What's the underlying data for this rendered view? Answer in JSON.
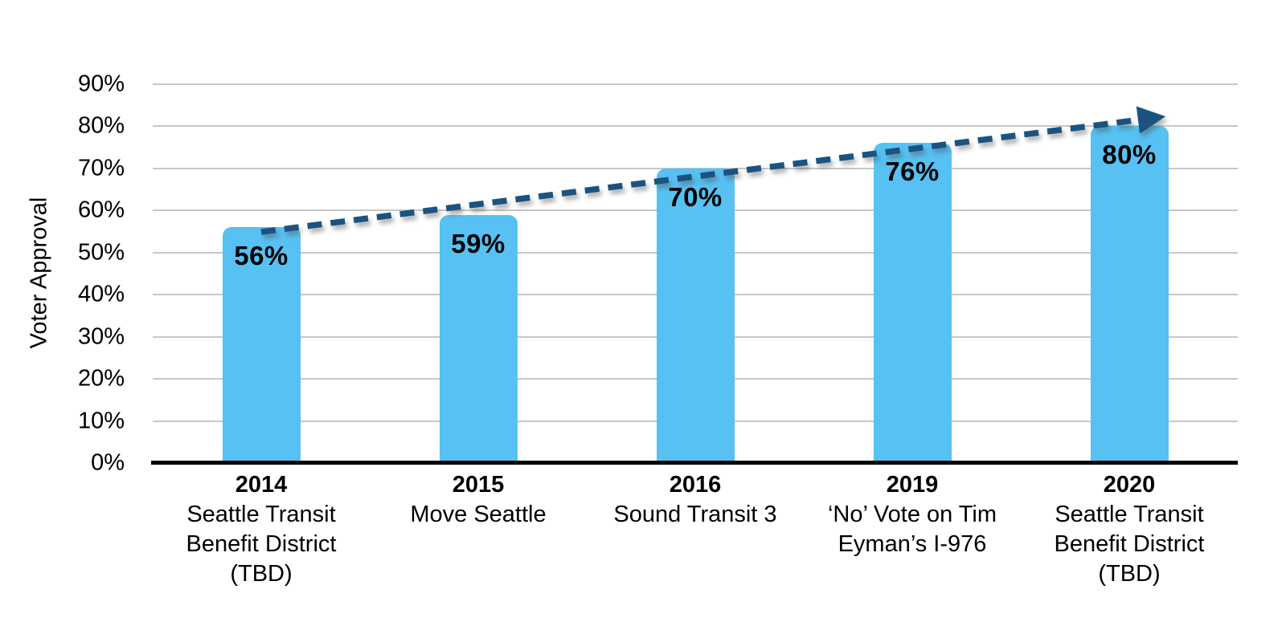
{
  "chart_data": {
    "type": "bar",
    "title": "",
    "ylabel": "Voter Approval",
    "xlabel": "",
    "ylim": [
      0,
      90
    ],
    "ytick_step": 10,
    "ytick_labels": [
      "0%",
      "10%",
      "20%",
      "30%",
      "40%",
      "50%",
      "60%",
      "70%",
      "80%",
      "90%"
    ],
    "grid": "horizontal",
    "legend": "none",
    "categories": [
      {
        "year": "2014",
        "name": "Seattle Transit Benefit District (TBD)",
        "lines": [
          "Seattle Transit",
          "Benefit District",
          "(TBD)"
        ]
      },
      {
        "year": "2015",
        "name": "Move Seattle",
        "lines": [
          "Move Seattle"
        ]
      },
      {
        "year": "2016",
        "name": "Sound Transit 3",
        "lines": [
          "Sound Transit 3"
        ]
      },
      {
        "year": "2019",
        "name": "‘No’ Vote on Tim Eyman’s I-976",
        "lines": [
          "‘No’ Vote on Tim",
          "Eyman’s I-976"
        ]
      },
      {
        "year": "2020",
        "name": "Seattle Transit Benefit District (TBD)",
        "lines": [
          "Seattle Transit",
          "Benefit District",
          "(TBD)"
        ]
      }
    ],
    "values": [
      56,
      59,
      70,
      76,
      80
    ],
    "value_labels": [
      "56%",
      "59%",
      "70%",
      "76%",
      "80%"
    ],
    "colors": {
      "bar": "#56C1F2",
      "trend_line": "#1B5380",
      "gridline": "#C7C7C7",
      "axis": "#000000",
      "text": "#000000"
    },
    "trend": {
      "style": "dashed",
      "arrow": true,
      "direction": "up"
    }
  }
}
